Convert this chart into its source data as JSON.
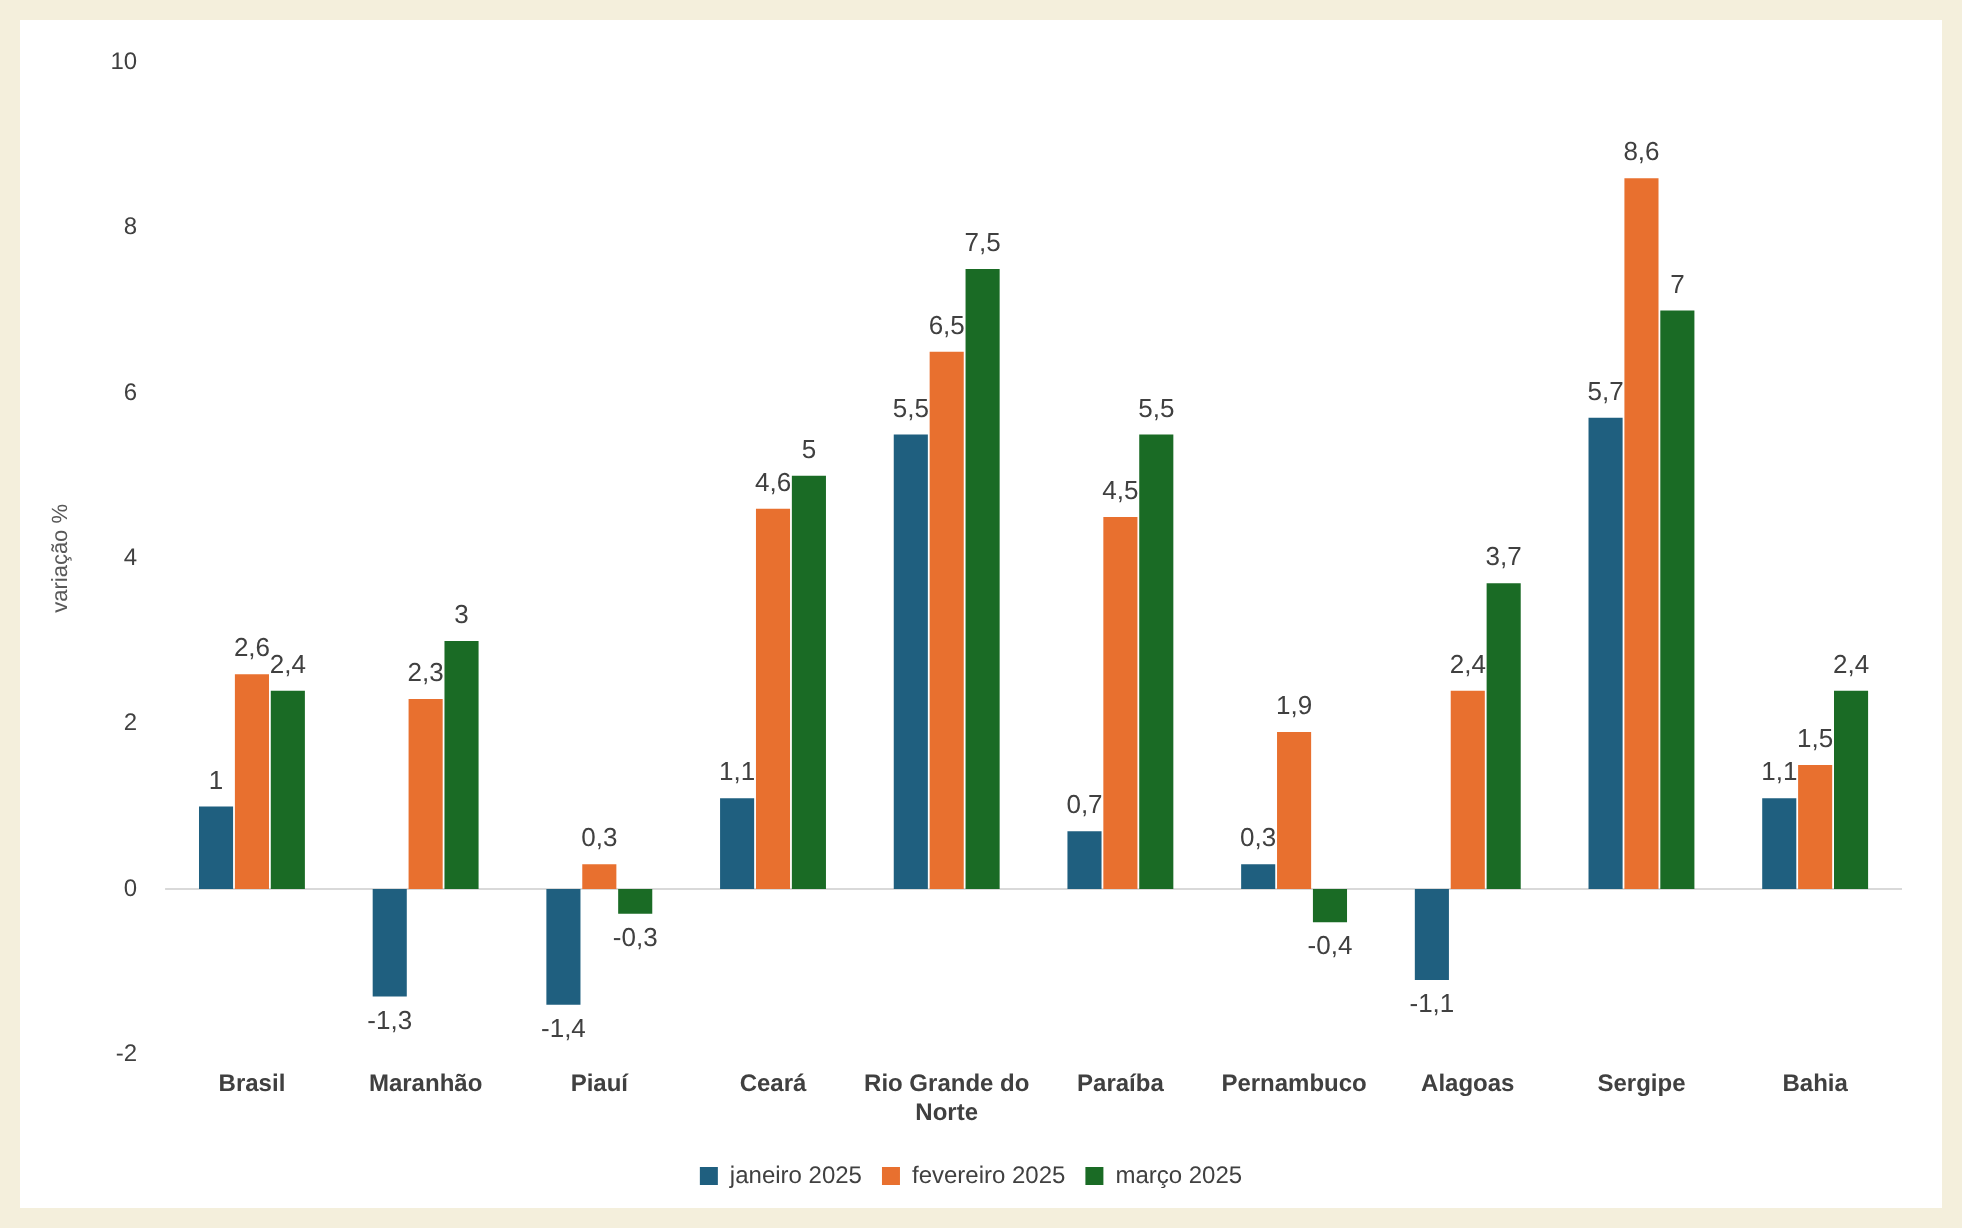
{
  "chart_data": {
    "type": "bar",
    "ylabel": "variação %",
    "categories": [
      "Brasil",
      "Maranhão",
      "Piauí",
      "Ceará",
      "Rio Grande do Norte",
      "Paraíba",
      "Pernambuco",
      "Alagoas",
      "Sergipe",
      "Bahia"
    ],
    "series": [
      {
        "name": "janeiro 2025",
        "color": "#1f5f7f",
        "values": [
          1,
          -1.3,
          -1.4,
          1.1,
          5.5,
          0.7,
          0.3,
          -1.1,
          5.7,
          1.1
        ],
        "value_labels": [
          "1",
          "-1,3",
          "-1,4",
          "1,1",
          "5,5",
          "0,7",
          "0,3",
          "-1,1",
          "5,7",
          "1,1"
        ]
      },
      {
        "name": "fevereiro 2025",
        "color": "#e8702f",
        "values": [
          2.6,
          2.3,
          0.3,
          4.6,
          6.5,
          4.5,
          1.9,
          2.4,
          8.6,
          1.5
        ],
        "value_labels": [
          "2,6",
          "2,3",
          "0,3",
          "4,6",
          "6,5",
          "4,5",
          "1,9",
          "2,4",
          "8,6",
          "1,5"
        ]
      },
      {
        "name": "março 2025",
        "color": "#1a6b25",
        "values": [
          2.4,
          3,
          -0.3,
          5,
          7.5,
          5.5,
          -0.4,
          3.7,
          7,
          2.4
        ],
        "value_labels": [
          "2,4",
          "3",
          "-0,3",
          "5",
          "7,5",
          "5,5",
          "-0,4",
          "3,7",
          "7",
          "2,4"
        ]
      }
    ],
    "ref_lines": [
      {
        "axis": "y",
        "value": 0,
        "color": "#d9d9d9"
      }
    ],
    "ylim": [
      -2,
      10
    ],
    "yticks": [
      -2,
      0,
      2,
      4,
      6,
      8,
      10
    ],
    "grid": false,
    "legend": "bottom"
  }
}
